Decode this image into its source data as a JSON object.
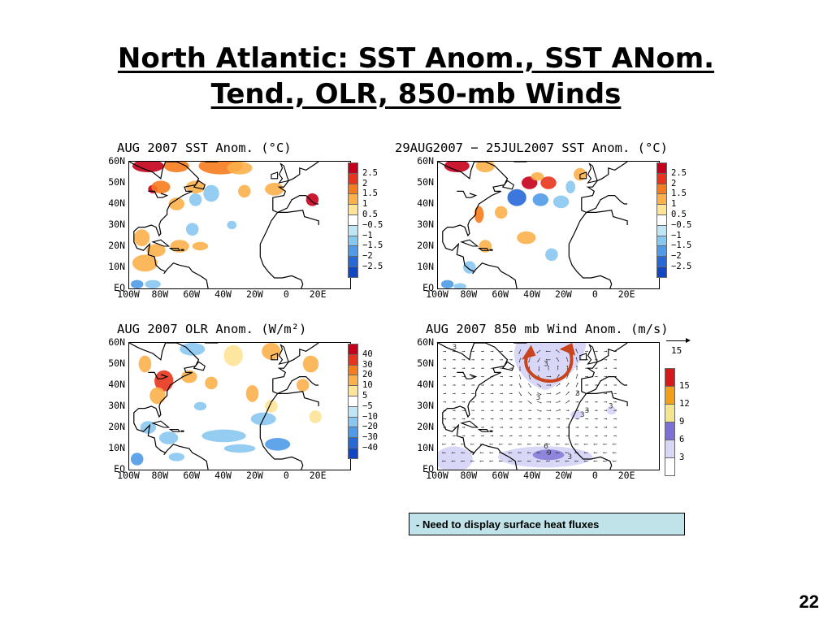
{
  "slide": {
    "title_line1": "North Atlantic: SST Anom., SST ANom.",
    "title_line2": "Tend., OLR, 850-mb Winds",
    "note": "- Need to display surface heat fluxes",
    "page_number": "22"
  },
  "axes": {
    "lat_labels": [
      "60N",
      "50N",
      "40N",
      "30N",
      "20N",
      "10N",
      "EQ"
    ],
    "lon_labels": [
      "100W",
      "80W",
      "60W",
      "40W",
      "20W",
      "0",
      "20E"
    ]
  },
  "panels": [
    {
      "id": "sst",
      "title": "AUG 2007 SST Anom. (°C)",
      "legend_labels": [
        "2.5",
        "2",
        "1.5",
        "1",
        "0.5",
        "−0.5",
        "−1",
        "−1.5",
        "−2",
        "−2.5"
      ],
      "legend_colors": [
        "#c6001c",
        "#e8341c",
        "#f77c1e",
        "#fbb04a",
        "#fde496",
        "#ffffff",
        "#bfe6f5",
        "#88c8f0",
        "#4f9be8",
        "#2768d9",
        "#1247c4"
      ]
    },
    {
      "id": "sst-tendency",
      "title": "29AUG2007 − 25JUL2007 SST Anom. (°C)",
      "legend_labels": [
        "2.5",
        "2",
        "1.5",
        "1",
        "0.5",
        "−0.5",
        "−1",
        "−1.5",
        "−2",
        "−2.5"
      ],
      "legend_colors": [
        "#c6001c",
        "#e8341c",
        "#f77c1e",
        "#fbb04a",
        "#fde496",
        "#ffffff",
        "#bfe6f5",
        "#88c8f0",
        "#4f9be8",
        "#2768d9",
        "#1247c4"
      ]
    },
    {
      "id": "olr",
      "title": "AUG 2007 OLR Anom. (W/m²)",
      "legend_labels": [
        "40",
        "30",
        "20",
        "10",
        "5",
        "−5",
        "−10",
        "−20",
        "−30",
        "−40"
      ],
      "legend_colors": [
        "#c6001c",
        "#e8341c",
        "#f77c1e",
        "#fbb04a",
        "#fde496",
        "#ffffff",
        "#bfe6f5",
        "#88c8f0",
        "#4f9be8",
        "#2768d9",
        "#1247c4"
      ]
    },
    {
      "id": "wind850",
      "title": "AUG 2007 850 mb Wind Anom. (m/s)",
      "reference_vector": "15",
      "legend_labels": [
        "15",
        "12",
        "9",
        "6",
        "3"
      ],
      "legend_colors": [
        "#d7191c",
        "#f49f1a",
        "#f5e58e",
        "#7c6fd6",
        "#d9d7f7",
        "#ffffff"
      ],
      "contour_labels": [
        "3",
        "3",
        "3",
        "3",
        "3",
        "3",
        "3",
        "6",
        "9",
        "3"
      ],
      "colors": {
        "shade_light": "#d9d7f7",
        "shade_dark": "#8e86dc",
        "circulation_arrow": "#c9431c"
      }
    }
  ],
  "colors": {
    "land_outline": "#000000",
    "note_background": "#bfe3e8"
  }
}
